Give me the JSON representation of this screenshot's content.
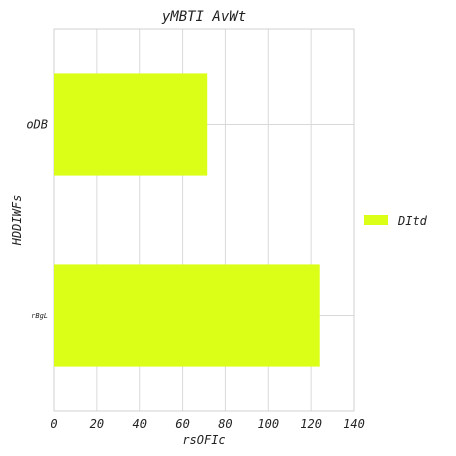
{
  "chart_data": {
    "type": "bar",
    "orientation": "horizontal",
    "title": "yMBTI AvWt",
    "xlabel": "rsOFIc",
    "ylabel": "HDDIWFs",
    "categories": [
      "rBgL",
      "oDB"
    ],
    "series": [
      {
        "name": "DItd",
        "values": [
          124,
          71.5
        ],
        "color": "#dcff17"
      }
    ],
    "xlim": [
      0,
      140
    ],
    "xticks": [
      0,
      20,
      40,
      60,
      80,
      100,
      120,
      140
    ],
    "grid": true,
    "legend_position": "center-right"
  }
}
